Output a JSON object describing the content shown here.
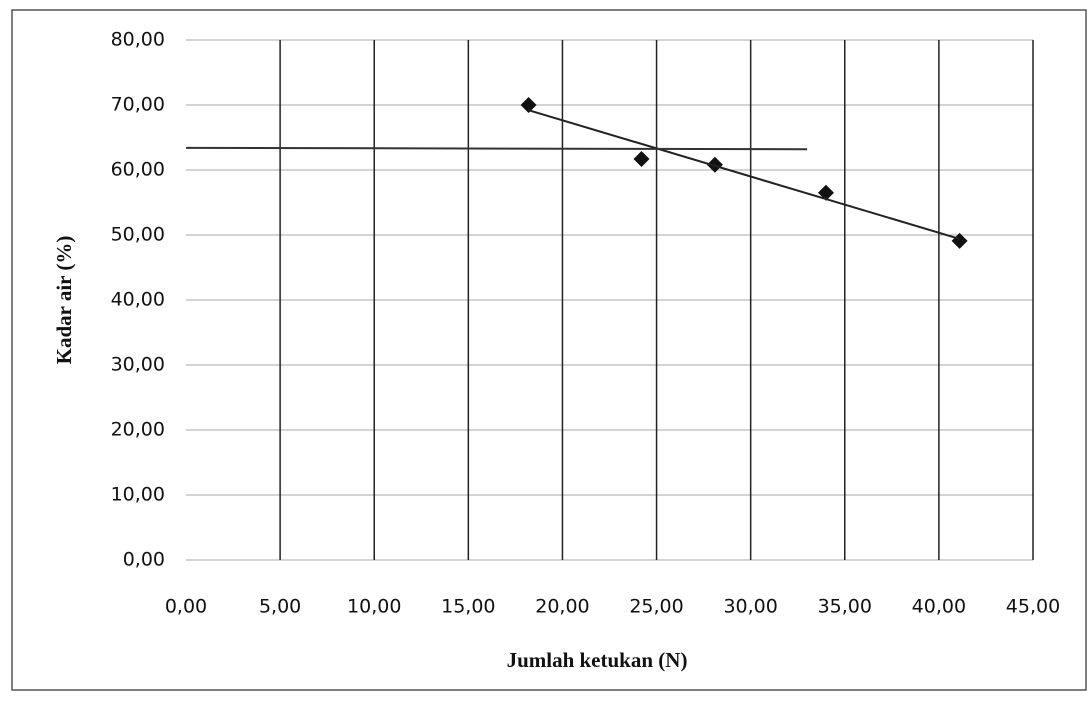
{
  "chart_data": {
    "type": "scatter",
    "x_label": "Jumlah ketukan (N)",
    "y_label": "Kadar air (%)",
    "series": [
      {
        "kind": "points",
        "color": "#111111",
        "x": [
          18.2,
          24.2,
          28.1,
          34.0,
          41.1
        ],
        "values": [
          70.0,
          61.7,
          60.8,
          56.5,
          49.1
        ]
      },
      {
        "kind": "line",
        "color": "#222222",
        "x": [
          18.2,
          41.1
        ],
        "values": [
          69.2,
          49.4
        ]
      },
      {
        "kind": "line",
        "color": "#333333",
        "x": [
          0,
          33.0
        ],
        "values": [
          63.4,
          63.2
        ]
      }
    ],
    "xlim": [
      0,
      45
    ],
    "xticks": [
      {
        "value": 0,
        "label": "0,00"
      },
      {
        "value": 5,
        "label": "5,00"
      },
      {
        "value": 10,
        "label": "10,00"
      },
      {
        "value": 15,
        "label": "15,00"
      },
      {
        "value": 20,
        "label": "20,00"
      },
      {
        "value": 25,
        "label": "25,00"
      },
      {
        "value": 30,
        "label": "30,00"
      },
      {
        "value": 35,
        "label": "35,00"
      },
      {
        "value": 40,
        "label": "40,00"
      },
      {
        "value": 45,
        "label": "45,00"
      }
    ],
    "ylim": [
      0,
      80
    ],
    "yticks": [
      {
        "value": 0,
        "label": "0,00"
      },
      {
        "value": 10,
        "label": "10,00"
      },
      {
        "value": 20,
        "label": "20,00"
      },
      {
        "value": 30,
        "label": "30,00"
      },
      {
        "value": 40,
        "label": "40,00"
      },
      {
        "value": 50,
        "label": "50,00"
      },
      {
        "value": 60,
        "label": "60,00"
      },
      {
        "value": 70,
        "label": "70,00"
      },
      {
        "value": 80,
        "label": "80,00"
      }
    ],
    "grid": true
  }
}
